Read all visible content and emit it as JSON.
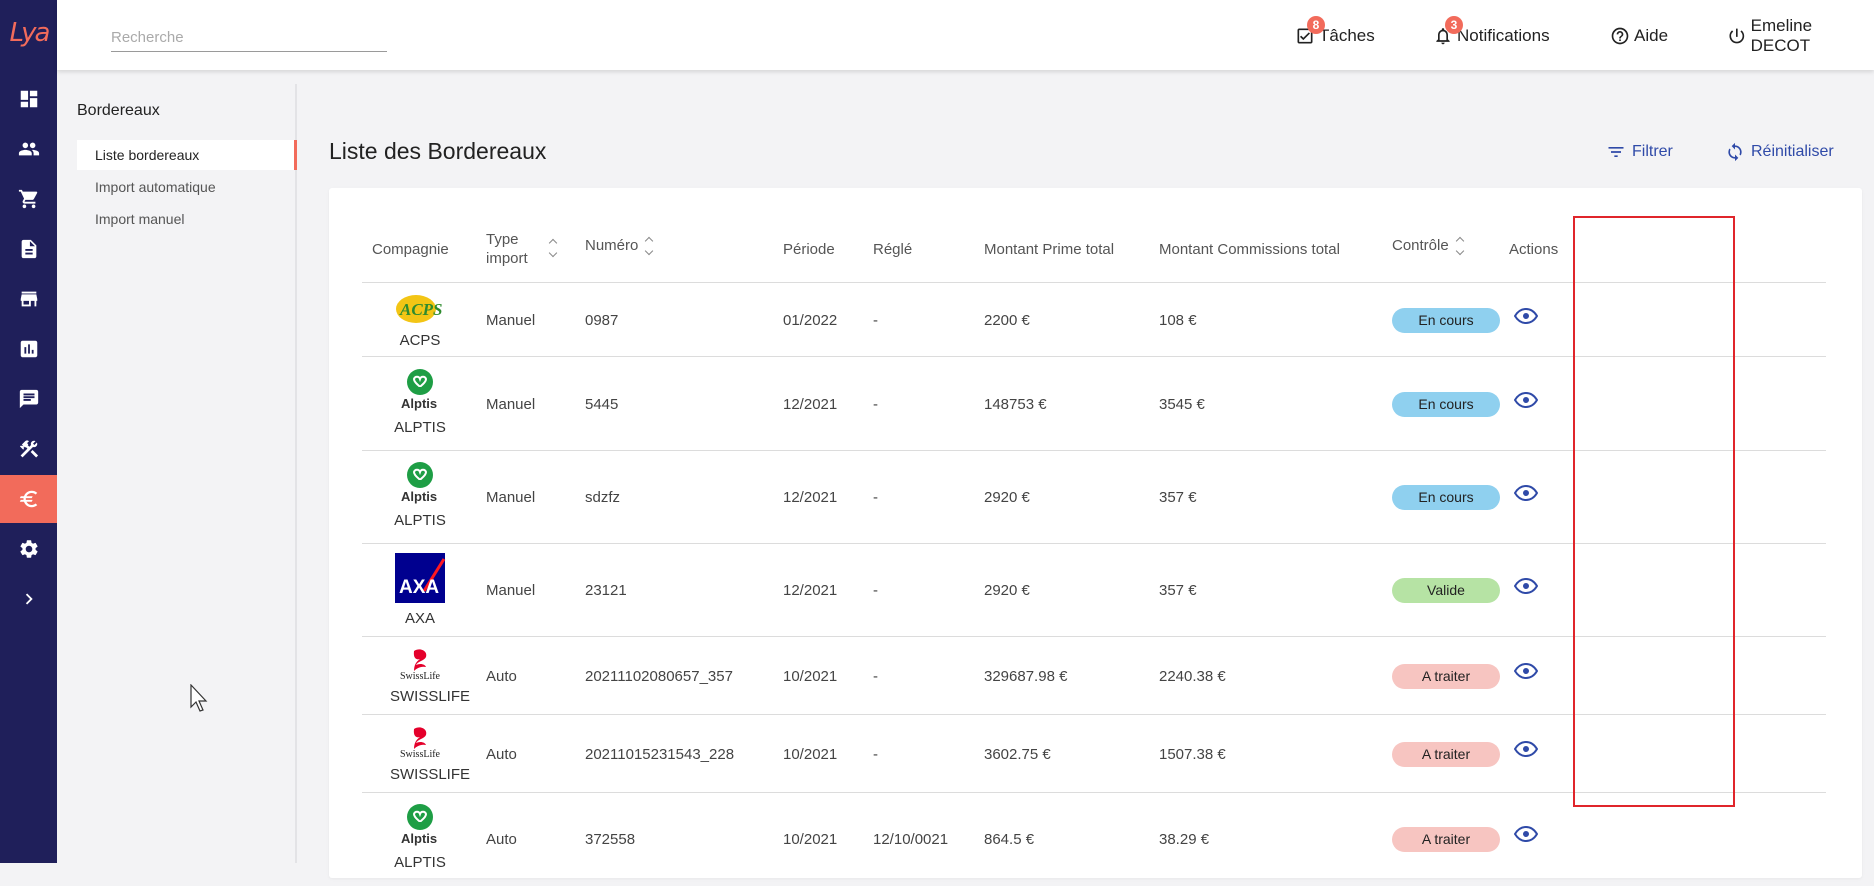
{
  "app": {
    "logo_text": "Lya"
  },
  "search": {
    "placeholder": "Recherche"
  },
  "topbar": {
    "tasks_label": "Tâches",
    "tasks_count": "8",
    "notifications_label": "Notifications",
    "notifications_count": "3",
    "help_label": "Aide",
    "user_label": "Emeline DECOT"
  },
  "subnav": {
    "title": "Bordereaux",
    "items": [
      {
        "label": "Liste bordereaux",
        "active": true
      },
      {
        "label": "Import automatique",
        "active": false
      },
      {
        "label": "Import manuel",
        "active": false
      }
    ]
  },
  "main": {
    "title": "Liste des Bordereaux",
    "filter_label": "Filtrer",
    "reset_label": "Réinitialiser"
  },
  "table": {
    "headers": {
      "company": "Compagnie",
      "type_line1": "Type",
      "type_line2": "import",
      "number": "Numéro",
      "period": "Période",
      "settled": "Réglé",
      "premium": "Montant Prime total",
      "commission": "Montant Commissions total",
      "control": "Contrôle",
      "actions": "Actions"
    },
    "rows": [
      {
        "company": "ACPS",
        "logo": "acps",
        "type": "Manuel",
        "number": "0987",
        "period": "01/2022",
        "settled": "-",
        "premium": "2200 €",
        "commission": "108 €",
        "status": "En cours"
      },
      {
        "company": "ALPTIS",
        "logo": "alptis",
        "type": "Manuel",
        "number": "5445",
        "period": "12/2021",
        "settled": "-",
        "premium": "148753 €",
        "commission": "3545 €",
        "status": "En cours"
      },
      {
        "company": "ALPTIS",
        "logo": "alptis",
        "type": "Manuel",
        "number": "sdzfz",
        "period": "12/2021",
        "settled": "-",
        "premium": "2920 €",
        "commission": "357 €",
        "status": "En cours"
      },
      {
        "company": "AXA",
        "logo": "axa",
        "type": "Manuel",
        "number": "23121",
        "period": "12/2021",
        "settled": "-",
        "premium": "2920 €",
        "commission": "357 €",
        "status": "Valide"
      },
      {
        "company": "SWISSLIFE",
        "logo": "swisslife",
        "type": "Auto",
        "number": "20211102080657_357",
        "period": "10/2021",
        "settled": "-",
        "premium": "329687.98 €",
        "commission": "2240.38 €",
        "status": "A traiter"
      },
      {
        "company": "SWISSLIFE",
        "logo": "swisslife",
        "type": "Auto",
        "number": "20211015231543_228",
        "period": "10/2021",
        "settled": "-",
        "premium": "3602.75 €",
        "commission": "1507.38 €",
        "status": "A traiter"
      },
      {
        "company": "ALPTIS",
        "logo": "alptis",
        "type": "Auto",
        "number": "372558",
        "period": "10/2021",
        "settled": "12/10/0021",
        "premium": "864.5 €",
        "commission": "38.29 €",
        "status": "A traiter"
      }
    ]
  },
  "logo_texts": {
    "acps": "ACPS",
    "alptis": "Alptis",
    "axa": "AXA",
    "swisslife": "SwissLife"
  },
  "status_colors": {
    "En cours": "#8fd0ef",
    "Valide": "#b6e3a4",
    "A traiter": "#f7c5c1"
  },
  "colors": {
    "accent": "#f26b5b",
    "rail": "#1f1f5a",
    "link": "#2f4aa8",
    "highlight": "#e0252b"
  }
}
